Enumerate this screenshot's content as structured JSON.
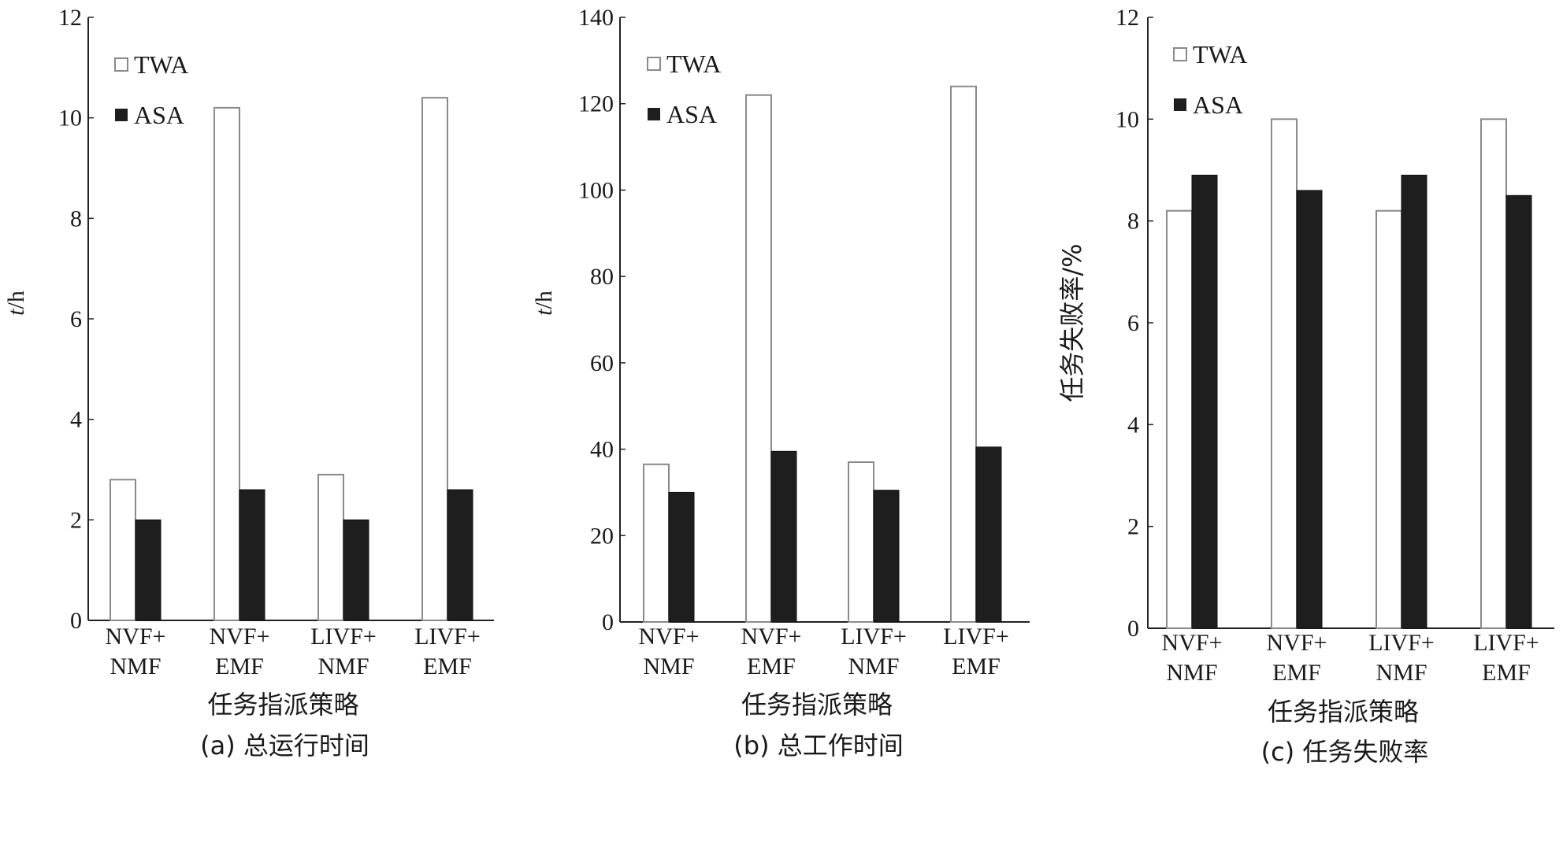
{
  "chart_data": [
    {
      "type": "bar",
      "categories": [
        [
          "NVF+",
          "NMF"
        ],
        [
          "NVF+",
          "EMF"
        ],
        [
          "LIVF+",
          "NMF"
        ],
        [
          "LIVF+",
          "EMF"
        ]
      ],
      "series": [
        {
          "name": "TWA",
          "values": [
            2.8,
            10.2,
            2.9,
            10.4
          ]
        },
        {
          "name": "ASA",
          "values": [
            2.0,
            2.6,
            2.0,
            2.6
          ]
        }
      ],
      "ylim": [
        0,
        12
      ],
      "yticks": [
        0,
        2,
        4,
        6,
        8,
        10,
        12
      ],
      "ylabel_italic": "t",
      "ylabel_rest": "/h",
      "ylabel_vertical": false,
      "xlabel": "任务指派策略",
      "caption": "(a) 总运行时间",
      "legend_position": "top-left"
    },
    {
      "type": "bar",
      "categories": [
        [
          "NVF+",
          "NMF"
        ],
        [
          "NVF+",
          "EMF"
        ],
        [
          "LIVF+",
          "NMF"
        ],
        [
          "LIVF+",
          "EMF"
        ]
      ],
      "series": [
        {
          "name": "TWA",
          "values": [
            36.5,
            122,
            37,
            124
          ]
        },
        {
          "name": "ASA",
          "values": [
            30,
            39.5,
            30.5,
            40.5
          ]
        }
      ],
      "ylim": [
        0,
        140
      ],
      "yticks": [
        0,
        20,
        40,
        60,
        80,
        100,
        120,
        140
      ],
      "ylabel_italic": "t",
      "ylabel_rest": "/h",
      "ylabel_vertical": false,
      "xlabel": "任务指派策略",
      "caption": "(b) 总工作时间",
      "legend_position": "top-left"
    },
    {
      "type": "bar",
      "categories": [
        [
          "NVF+",
          "NMF"
        ],
        [
          "NVF+",
          "EMF"
        ],
        [
          "LIVF+",
          "NMF"
        ],
        [
          "LIVF+",
          "EMF"
        ]
      ],
      "series": [
        {
          "name": "TWA",
          "values": [
            8.2,
            10.0,
            8.2,
            10.0
          ]
        },
        {
          "name": "ASA",
          "values": [
            8.9,
            8.6,
            8.9,
            8.5
          ]
        }
      ],
      "ylim": [
        0,
        12
      ],
      "yticks": [
        0,
        2,
        4,
        6,
        8,
        10,
        12
      ],
      "ylabel_italic": "",
      "ylabel_rest": "任务失败率/%",
      "ylabel_vertical": true,
      "xlabel": "任务指派策略",
      "caption": "(c) 任务失败率",
      "legend_position": "top-left"
    }
  ],
  "colors": {
    "twa_fill": "#ffffff",
    "twa_stroke": "#8a8a8a",
    "asa_fill": "#1e1e1e",
    "axis": "#222222"
  }
}
